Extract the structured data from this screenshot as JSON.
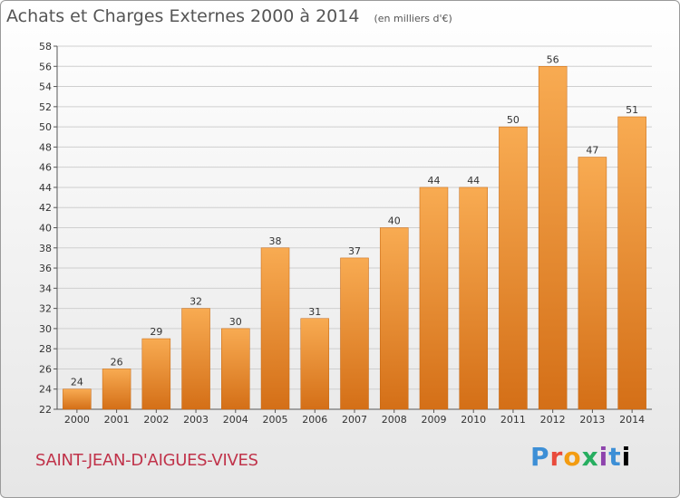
{
  "header": {
    "title": "Achats et Charges Externes 2000 à 2014",
    "unit": "(en milliers d'€)"
  },
  "footer": {
    "city": "SAINT-JEAN-D'AIGUES-VIVES",
    "logo": [
      "P",
      "r",
      "o",
      "x",
      "i",
      "t",
      "i"
    ]
  },
  "colors": {
    "bar_light": "#f7a84e",
    "bar_dark": "#d6731a",
    "title": "#555555",
    "city": "#c0334a"
  },
  "chart_data": {
    "type": "bar",
    "title": "Achats et Charges Externes 2000 à 2014",
    "subtitle": "(en milliers d'€)",
    "xlabel": "",
    "ylabel": "",
    "categories": [
      "2000",
      "2001",
      "2002",
      "2003",
      "2004",
      "2005",
      "2006",
      "2007",
      "2008",
      "2009",
      "2010",
      "2011",
      "2012",
      "2013",
      "2014"
    ],
    "values": [
      24,
      26,
      29,
      32,
      30,
      38,
      31,
      37,
      40,
      44,
      44,
      50,
      56,
      47,
      51
    ],
    "ylim": [
      22,
      58
    ],
    "yticks": [
      22,
      24,
      26,
      28,
      30,
      32,
      34,
      36,
      38,
      40,
      42,
      44,
      46,
      48,
      50,
      52,
      54,
      56,
      58
    ],
    "grid": true,
    "data_labels": true
  }
}
